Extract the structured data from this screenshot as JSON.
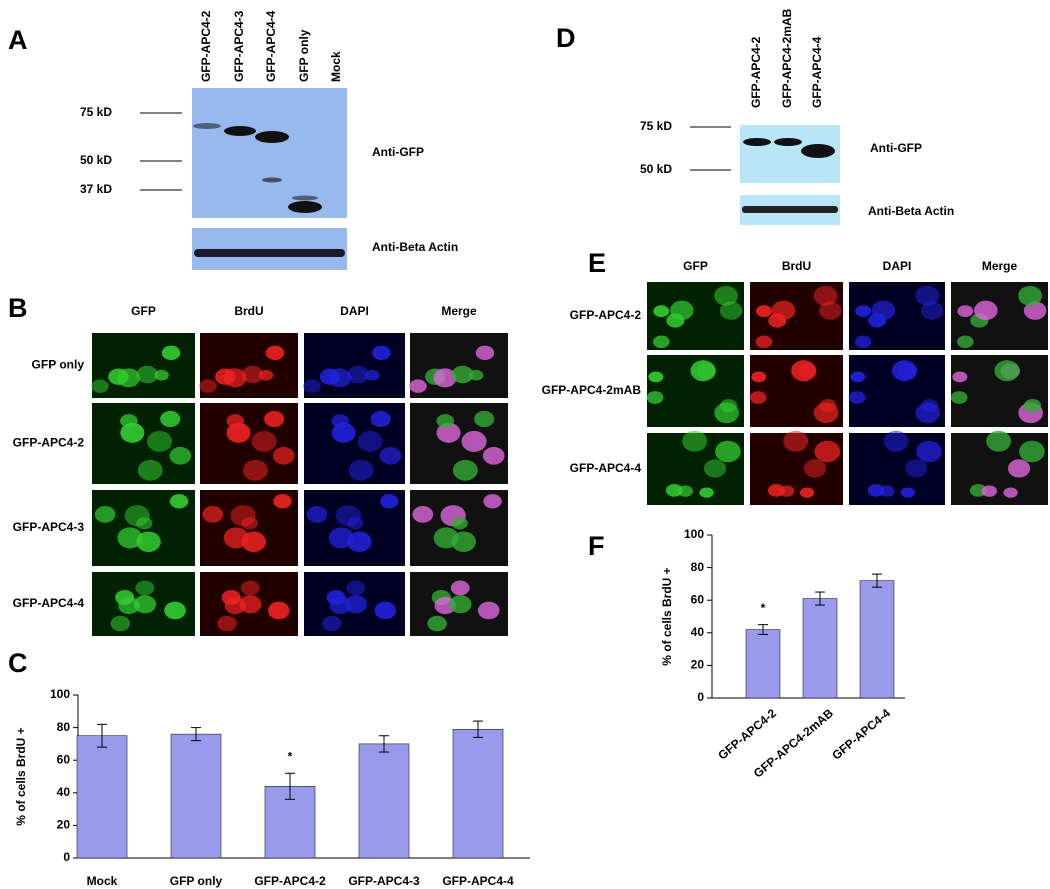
{
  "panel_labels": [
    "A",
    "B",
    "C",
    "D",
    "E",
    "F"
  ],
  "blot_a": {
    "lanes": [
      "GFP-APC4-2",
      "GFP-APC4-3",
      "GFP-APC4-4",
      "GFP only",
      "Mock"
    ],
    "markers": [
      "75 kD",
      "50 kD",
      "37 kD"
    ],
    "antibodies": [
      "Anti-GFP",
      "Anti-Beta Actin"
    ]
  },
  "blot_d": {
    "lanes": [
      "GFP-APC4-2",
      "GFP-APC4-2mAB",
      "GFP-APC4-4"
    ],
    "markers": [
      "75 kD",
      "50 kD"
    ],
    "antibodies": [
      "Anti-GFP",
      "Anti-Beta Actin"
    ]
  },
  "microscopy_b": {
    "columns": [
      "GFP",
      "BrdU",
      "DAPI",
      "Merge"
    ],
    "rows": [
      "GFP only",
      "GFP-APC4-2",
      "GFP-APC4-3",
      "GFP-APC4-4"
    ]
  },
  "microscopy_e": {
    "columns": [
      "GFP",
      "BrdU",
      "DAPI",
      "Merge"
    ],
    "rows": [
      "GFP-APC4-2",
      "GFP-APC4-2mAB",
      "GFP-APC4-4"
    ]
  },
  "chart_data": [
    {
      "type": "bar",
      "y_label": "% of cells BrdU +",
      "categories": [
        "Mock",
        "GFP only",
        "GFP-APC4-2",
        "GFP-APC4-3",
        "GFP-APC4-4"
      ],
      "values": [
        75,
        76,
        44,
        70,
        79
      ],
      "errors": [
        7,
        4,
        8,
        5,
        5
      ],
      "color": "#9a9aec",
      "ylim": [
        0,
        100
      ],
      "yticks": [
        0,
        20,
        40,
        60,
        80,
        100
      ],
      "annotations": [
        {
          "text": "*",
          "category": "GFP-APC4-2"
        }
      ]
    },
    {
      "type": "bar",
      "y_label": "% of cells BrdU +",
      "categories": [
        "GFP-APC4-2",
        "GFP-APC4-2mAB",
        "GFP-APC4-4"
      ],
      "values": [
        42,
        61,
        72
      ],
      "errors": [
        3,
        4,
        4
      ],
      "color": "#9a9aec",
      "ylim": [
        0,
        100
      ],
      "yticks": [
        0,
        20,
        40,
        60,
        80,
        100
      ],
      "annotations": [
        {
          "text": "*",
          "category": "GFP-APC4-2"
        }
      ]
    }
  ]
}
